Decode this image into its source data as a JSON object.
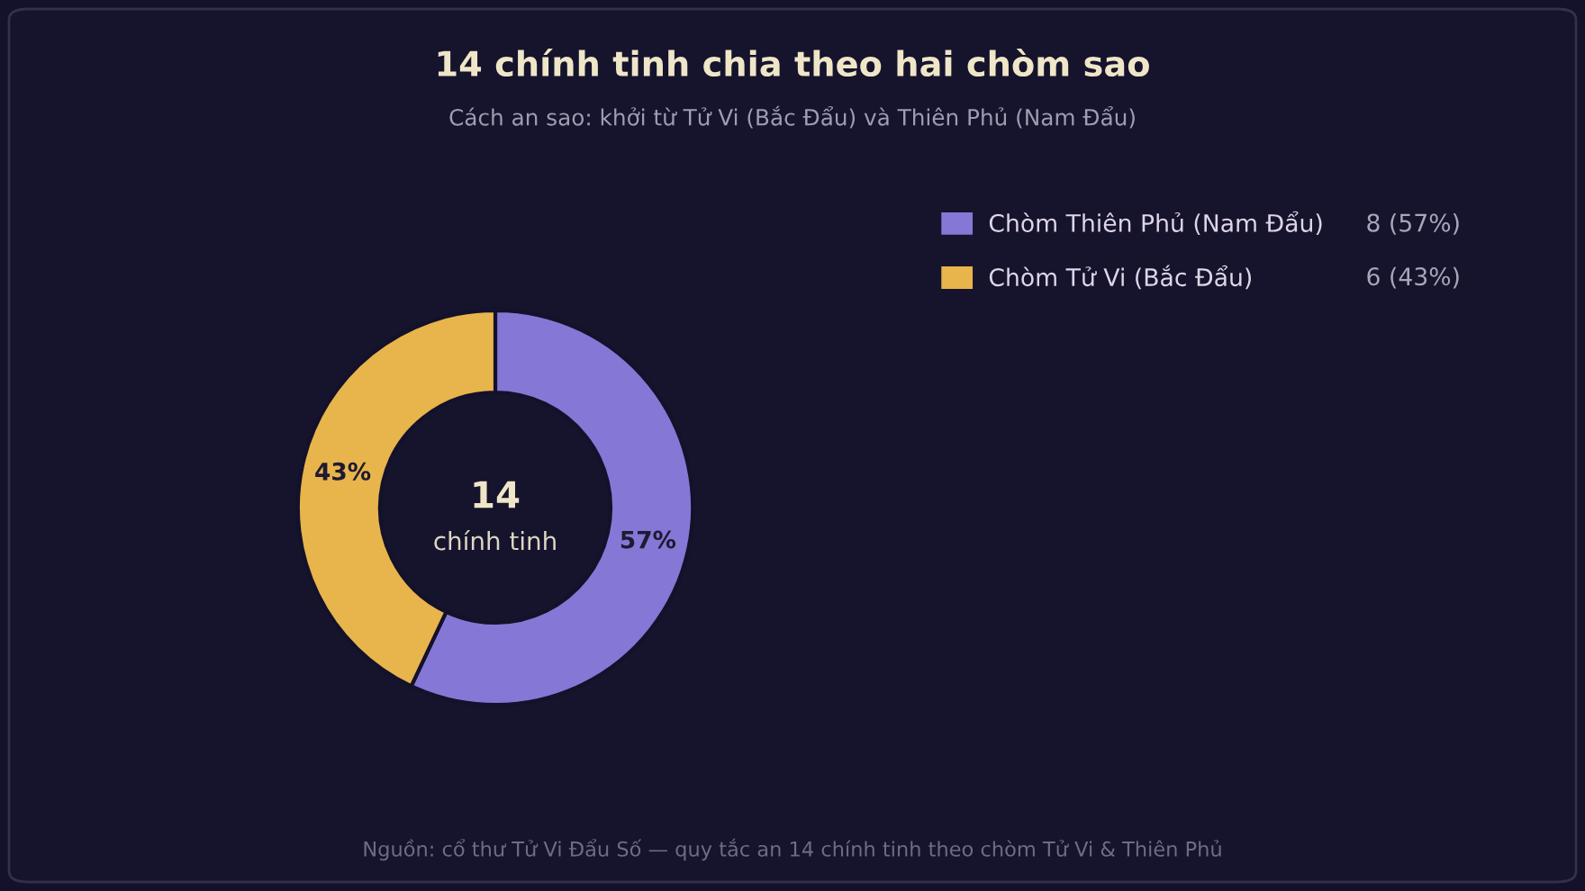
{
  "chart_data": {
    "type": "donut",
    "title": "14 chính tinh chia theo hai chòm sao",
    "subtitle": "Cách an sao: khởi từ Tử Vi (Bắc Đẩu) và Thiên Phủ (Nam Đẩu)",
    "categories": [
      "Chòm Thiên Phủ (Nam Đẩu)",
      "Chòm Tử Vi (Bắc Đẩu)"
    ],
    "values": [
      57,
      43
    ],
    "colors": [
      "#8577d6",
      "#e8b44c"
    ],
    "value_labels": [
      "57%",
      "43%"
    ],
    "legend": "top right",
    "annotations": [
      "14",
      "chính tinh",
      "8 (57%)",
      "6 (43%)",
      "Nguồn: cổ thư Tử Vi Đẩu Số — quy tắc an 14 chính tinh theo chòm Tử Vi & Thiên Phủ"
    ]
  }
}
